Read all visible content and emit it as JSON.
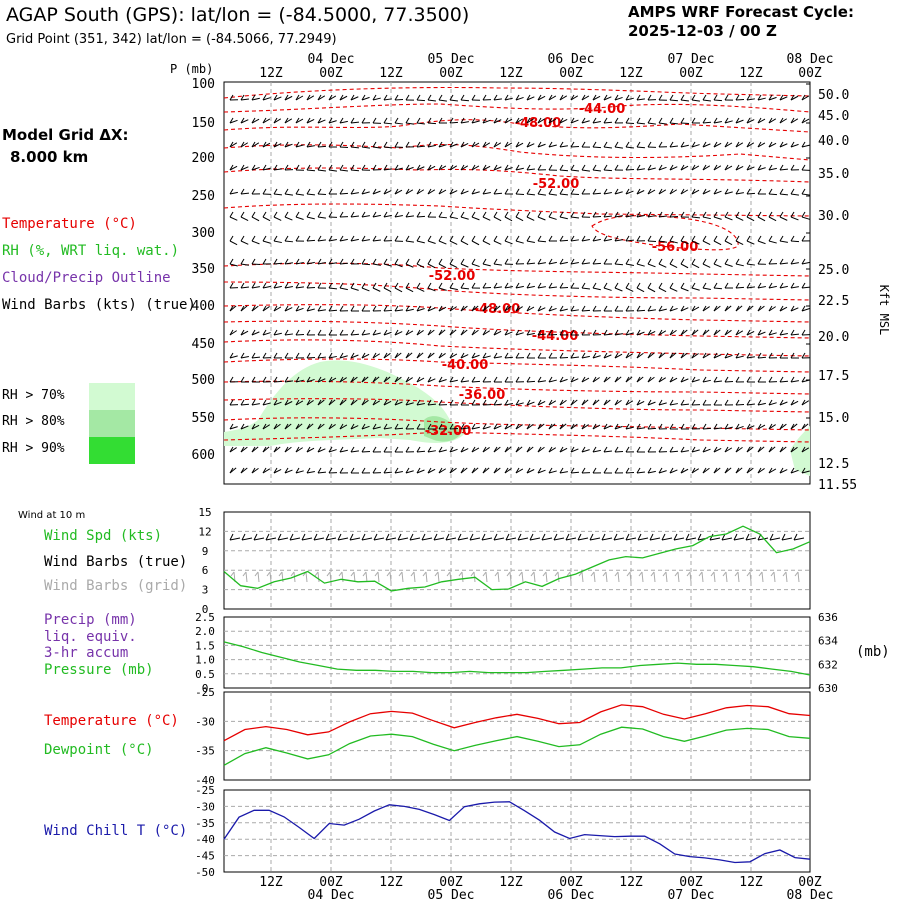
{
  "header": {
    "title": "AGAP South (GPS):  lat/lon = (-84.5000, 77.3500)",
    "grid_point": "Grid Point (351, 342) lat/lon = (-84.5066, 77.2949)",
    "cycle_title": "AMPS WRF Forecast Cycle:",
    "cycle_value": "2025-12-03 / 00  Z"
  },
  "model_grid": {
    "label": "Model Grid ΔX:",
    "value": "8.000 km"
  },
  "legend": {
    "temperature": "Temperature (°C)",
    "rh": "RH (%, WRT liq. wat.)",
    "cloud": "Cloud/Precip Outline",
    "wind": "Wind Barbs (kts) (true)",
    "rh70": "RH > 70%",
    "rh80": "RH > 80%",
    "rh90": "RH > 90%"
  },
  "colors": {
    "temp": "#e60000",
    "rh70": "#d2fad2",
    "rh80": "#a4e8a4",
    "rh90": "#33dd33",
    "cloud": "#7733aa",
    "green": "#22bb22",
    "blue": "#1a1aaa",
    "grid": "#aaaaaa",
    "barb_grid": "#aaaaaa"
  },
  "time_axis": {
    "tick_labels": [
      "12Z",
      "00Z",
      "12Z",
      "00Z",
      "12Z",
      "00Z",
      "12Z",
      "00Z",
      "12Z",
      "00Z"
    ],
    "date_labels": [
      "04 Dec",
      "05 Dec",
      "06 Dec",
      "07 Dec",
      "08 Dec"
    ]
  },
  "chart_data": [
    {
      "type": "line",
      "title": "Upper-air cross section",
      "ylabel": "P (mb)",
      "y2label": "Kft MSL",
      "pressure_ticks": [
        "100",
        "150",
        "200",
        "250",
        "300",
        "350",
        "400",
        "450",
        "500",
        "550",
        "600"
      ],
      "kft_ticks": [
        "50.0",
        "45.0",
        "40.0",
        "35.0",
        "30.0",
        "25.0",
        "22.5",
        "20.0",
        "17.5",
        "15.0",
        "12.5",
        "11.55"
      ],
      "isotherm_labels": [
        "-44.00",
        "-48.00",
        "-52.00",
        "-56.00",
        "-52.00",
        "-48.00",
        "-44.00",
        "-40.00",
        "-36.00",
        "-32.00"
      ]
    },
    {
      "type": "line",
      "title": "Wind at 10 m",
      "series": [
        {
          "name": "Wind Spd (kts)",
          "color": "green",
          "values": [
            5.8,
            3.6,
            3.2,
            4.2,
            4.8,
            5.8,
            4.0,
            4.6,
            4.2,
            4.3,
            2.8,
            3.2,
            3.4,
            4.2,
            4.6,
            4.9,
            3.0,
            3.1,
            4.2,
            3.5,
            4.7,
            5.4,
            6.5,
            7.6,
            8.1,
            7.9,
            8.6,
            9.3,
            9.8,
            11.2,
            11.6,
            12.8,
            11.6,
            8.7,
            9.3,
            10.4
          ]
        }
      ],
      "labels": {
        "spd": "Wind Spd (kts)",
        "barbs_true": "Wind Barbs (true)",
        "barbs_grid": "Wind Barbs (grid)"
      },
      "yticks": [
        "15",
        "12",
        "9",
        "6",
        "3",
        "0"
      ],
      "ylim": [
        0,
        15
      ]
    },
    {
      "type": "line",
      "title": "Precip and Pressure",
      "series": [
        {
          "name": "Pressure (mb)",
          "color": "green",
          "values": [
            633.9,
            633.5,
            633.0,
            632.6,
            632.2,
            631.9,
            631.6,
            631.5,
            631.5,
            631.4,
            631.4,
            631.3,
            631.3,
            631.4,
            631.3,
            631.3,
            631.3,
            631.4,
            631.5,
            631.6,
            631.7,
            631.7,
            631.9,
            632.0,
            632.1,
            632.0,
            632.0,
            631.9,
            631.8,
            631.6,
            631.4,
            631.1
          ]
        }
      ],
      "labels": {
        "precip": "Precip (mm)",
        "liq": "liq. equiv.",
        "accum": "3-hr accum",
        "pressure": "Pressure (mb)",
        "mb": "(mb)"
      },
      "yticks_left": [
        "2.5",
        "2.0",
        "1.5",
        "1.0",
        "0.5",
        "0"
      ],
      "yticks_right": [
        "636",
        "634",
        "632",
        "630"
      ],
      "ylim_right": [
        630,
        636
      ]
    },
    {
      "type": "line",
      "title": "Temperature and Dewpoint",
      "series": [
        {
          "name": "Temperature (°C)",
          "color": "temp",
          "values": [
            -33.3,
            -31.4,
            -30.9,
            -31.4,
            -32.3,
            -31.8,
            -30.1,
            -28.7,
            -28.3,
            -28.6,
            -29.9,
            -31.1,
            -30.2,
            -29.4,
            -28.8,
            -29.5,
            -30.4,
            -30.2,
            -28.4,
            -27.2,
            -27.5,
            -28.8,
            -29.6,
            -28.7,
            -27.7,
            -27.3,
            -27.5,
            -28.7,
            -29.0
          ]
        },
        {
          "name": "Dewpoint (°C)",
          "color": "green",
          "values": [
            -37.5,
            -35.5,
            -34.5,
            -35.4,
            -36.4,
            -35.7,
            -33.8,
            -32.5,
            -32.2,
            -32.6,
            -33.9,
            -35.0,
            -34.1,
            -33.3,
            -32.6,
            -33.4,
            -34.3,
            -34.0,
            -32.2,
            -31.0,
            -31.3,
            -32.6,
            -33.4,
            -32.5,
            -31.5,
            -31.2,
            -31.4,
            -32.6,
            -32.9
          ]
        }
      ],
      "labels": {
        "temp": "Temperature (°C)",
        "dew": "Dewpoint (°C)"
      },
      "yticks": [
        "-25",
        "-30",
        "-35",
        "-40"
      ],
      "ylim": [
        -40,
        -25
      ]
    },
    {
      "type": "line",
      "title": "Wind Chill",
      "series": [
        {
          "name": "Wind Chill T (°C)",
          "color": "blue",
          "values": [
            -40.0,
            -33.3,
            -31.2,
            -31.2,
            -33.2,
            -36.4,
            -39.8,
            -35.2,
            -35.7,
            -33.9,
            -31.4,
            -29.5,
            -30.0,
            -30.9,
            -32.5,
            -34.3,
            -30.1,
            -29.2,
            -28.7,
            -28.6,
            -31.3,
            -34.2,
            -37.8,
            -39.8,
            -38.6,
            -38.9,
            -39.2,
            -39.1,
            -39.1,
            -41.4,
            -44.5,
            -45.3,
            -45.7,
            -46.3,
            -47.1,
            -46.9,
            -44.4,
            -43.3,
            -45.6,
            -46.1
          ]
        }
      ],
      "labels": {
        "wc": "Wind Chill T (°C)"
      },
      "yticks": [
        "-25",
        "-30",
        "-35",
        "-40",
        "-45",
        "-50"
      ],
      "ylim": [
        -50,
        -25
      ]
    }
  ]
}
